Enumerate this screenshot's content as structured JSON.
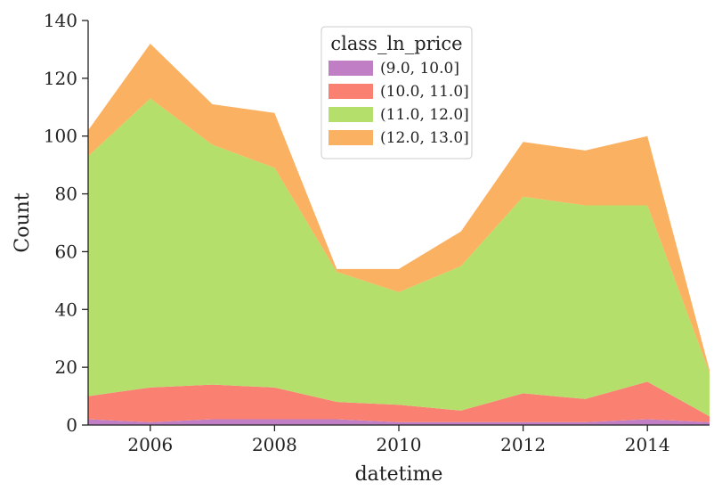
{
  "chart_data": {
    "type": "area",
    "stacked": true,
    "x": [
      2005,
      2006,
      2007,
      2008,
      2009,
      2010,
      2011,
      2012,
      2013,
      2014,
      2015
    ],
    "series": [
      {
        "name": "(9.0, 10.0]",
        "color": "#c07fc4",
        "values": [
          2,
          1,
          2,
          2,
          2,
          1,
          1,
          1,
          1,
          2,
          1
        ]
      },
      {
        "name": "(10.0, 11.0]",
        "color": "#fa8072",
        "values": [
          8,
          12,
          12,
          11,
          6,
          6,
          4,
          10,
          8,
          13,
          2
        ]
      },
      {
        "name": "(11.0, 12.0]",
        "color": "#b5df6b",
        "values": [
          83,
          100,
          83,
          76,
          45,
          39,
          50,
          68,
          67,
          61,
          15
        ]
      },
      {
        "name": "(12.0, 13.0]",
        "color": "#fbb162",
        "values": [
          9,
          19,
          14,
          19,
          1,
          8,
          12,
          19,
          19,
          24,
          1
        ]
      }
    ],
    "xlabel": "datetime",
    "ylabel": "Count",
    "xlim": [
      2005,
      2015
    ],
    "ylim": [
      0,
      140
    ],
    "x_ticks": [
      "2006",
      "2008",
      "2010",
      "2012",
      "2014"
    ],
    "y_ticks": [
      "0",
      "20",
      "40",
      "60",
      "80",
      "100",
      "120",
      "140"
    ],
    "legend_title": "class_ln_price",
    "legend_position": "top-center",
    "grid": false
  }
}
